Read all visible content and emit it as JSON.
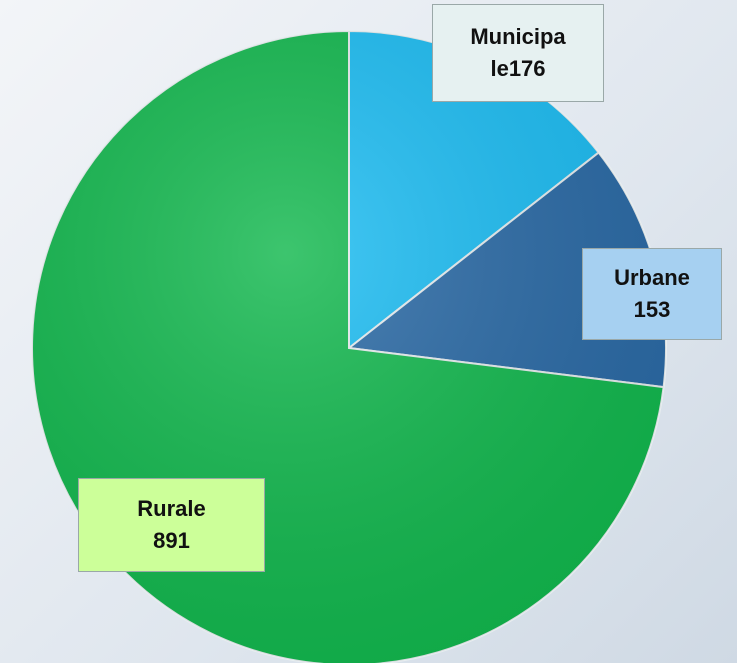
{
  "chart_data": {
    "type": "pie",
    "categories": [
      "Municipale",
      "Urbane",
      "Rurale"
    ],
    "values": [
      176,
      153,
      891
    ],
    "colors": [
      "#1cbdf3",
      "#2a6aa6",
      "#12b84e"
    ],
    "label_colors": [
      "#e6f1f1",
      "#a6d0f1",
      "#ccff99"
    ]
  }
}
